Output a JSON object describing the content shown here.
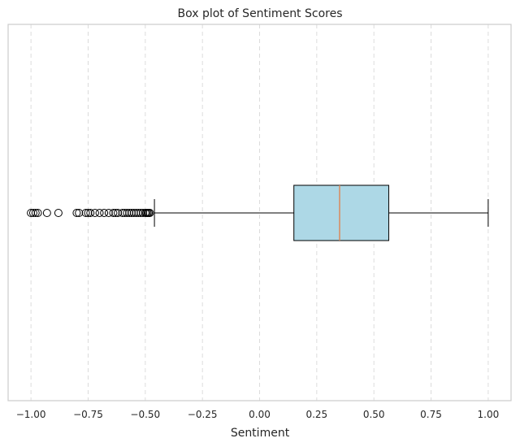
{
  "chart_data": {
    "type": "boxplot",
    "orientation": "horizontal",
    "title": "Box plot of Sentiment Scores",
    "xlabel": "Sentiment",
    "ylabel": "",
    "xlim": [
      -1.1,
      1.1
    ],
    "xticks": [
      -1.0,
      -0.75,
      -0.5,
      -0.25,
      0.0,
      0.25,
      0.5,
      0.75,
      1.0
    ],
    "xtick_labels": [
      "−1.00",
      "−0.75",
      "−0.50",
      "−0.25",
      "0.00",
      "0.25",
      "0.50",
      "0.75",
      "1.00"
    ],
    "grid": "x-dashed",
    "box": {
      "whisker_low": -0.46,
      "q1": 0.15,
      "median": 0.35,
      "q3": 0.565,
      "whisker_high": 1.0
    },
    "fliers": [
      -1.0,
      -0.99,
      -0.98,
      -0.97,
      -0.93,
      -0.88,
      -0.8,
      -0.79,
      -0.76,
      -0.75,
      -0.74,
      -0.72,
      -0.7,
      -0.68,
      -0.66,
      -0.64,
      -0.63,
      -0.62,
      -0.6,
      -0.59,
      -0.58,
      -0.57,
      -0.56,
      -0.55,
      -0.54,
      -0.53,
      -0.52,
      -0.51,
      -0.5,
      -0.495,
      -0.49,
      -0.485,
      -0.48
    ],
    "colors": {
      "box_fill": "#add8e6",
      "median": "#dd8452"
    }
  }
}
